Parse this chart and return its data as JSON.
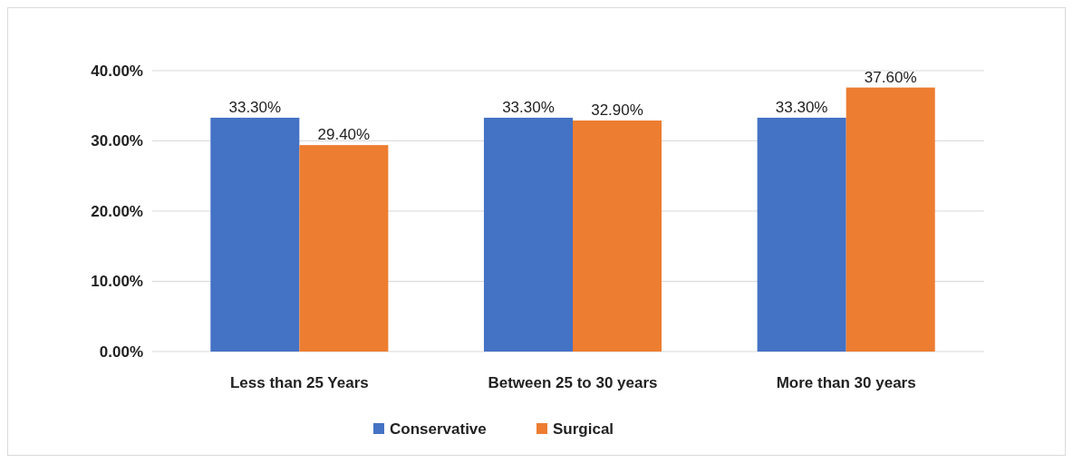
{
  "chart_data": {
    "type": "bar",
    "categories": [
      "Less than 25 Years",
      "Between 25 to 30 years",
      "More than 30 years"
    ],
    "series": [
      {
        "name": "Conservative",
        "color": "#4472c4",
        "values": [
          33.3,
          33.3,
          33.3
        ],
        "value_labels": [
          "33.30%",
          "33.30%",
          "33.30%"
        ]
      },
      {
        "name": "Surgical",
        "color": "#ed7d31",
        "values": [
          29.4,
          32.9,
          37.6
        ],
        "value_labels": [
          "29.40%",
          "32.90%",
          "37.60%"
        ]
      }
    ],
    "ylim": [
      0,
      40
    ],
    "yticks": [
      {
        "value": 0,
        "label": "0.00%"
      },
      {
        "value": 10,
        "label": "10.00%"
      },
      {
        "value": 20,
        "label": "20.00%"
      },
      {
        "value": 30,
        "label": "30.00%"
      },
      {
        "value": 40,
        "label": "40.00%"
      }
    ],
    "grid": "y",
    "legend": "bottom"
  }
}
